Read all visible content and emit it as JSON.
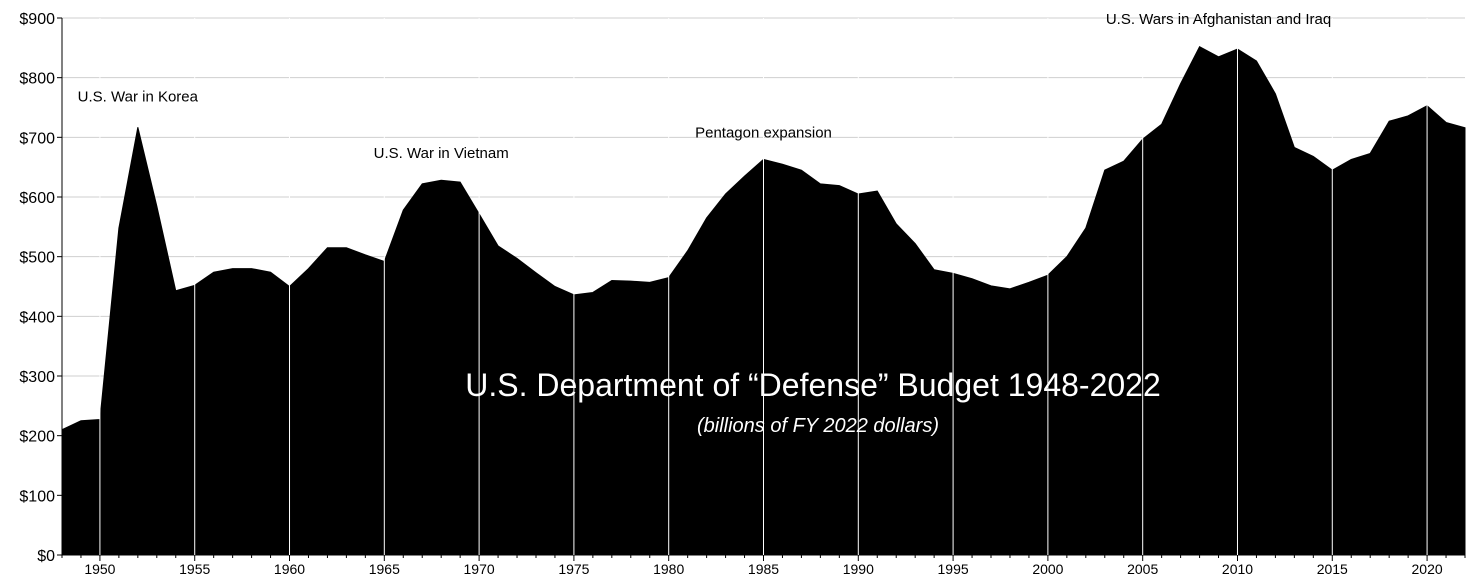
{
  "chart_data": {
    "type": "area",
    "title": "U.S. Department of “Defense” Budget 1948-2022",
    "subtitle": "(billions of FY 2022 dollars)",
    "xlabel": "",
    "ylabel": "",
    "xlim": [
      1948,
      2022
    ],
    "ylim": [
      0,
      900
    ],
    "yticks": [
      0,
      100,
      200,
      300,
      400,
      500,
      600,
      700,
      800,
      900
    ],
    "ytick_labels": [
      "$0",
      "$100",
      "$200",
      "$300",
      "$400",
      "$500",
      "$600",
      "$700",
      "$800",
      "$900"
    ],
    "xticks": [
      1950,
      1955,
      1960,
      1965,
      1970,
      1975,
      1980,
      1985,
      1990,
      1995,
      2000,
      2005,
      2010,
      2015,
      2020
    ],
    "xtick_labels": [
      "1950",
      "1955",
      "1960",
      "1965",
      "1970",
      "1975",
      "1980",
      "1985",
      "1990",
      "1995",
      "2000",
      "2005",
      "2010",
      "2015",
      "2020"
    ],
    "grid": "vertical lines every 5 years",
    "legend": "none",
    "colors": {
      "area": "#000000",
      "gridlines": "#ffffff",
      "background": "#ffffff",
      "title_text": "#ffffff"
    },
    "x": [
      1948,
      1949,
      1950,
      1951,
      1952,
      1953,
      1954,
      1955,
      1956,
      1957,
      1958,
      1959,
      1960,
      1961,
      1962,
      1963,
      1964,
      1965,
      1966,
      1967,
      1968,
      1969,
      1970,
      1971,
      1972,
      1973,
      1974,
      1975,
      1976,
      1977,
      1978,
      1979,
      1980,
      1981,
      1982,
      1983,
      1984,
      1985,
      1986,
      1987,
      1988,
      1989,
      1990,
      1991,
      1992,
      1993,
      1994,
      1995,
      1996,
      1997,
      1998,
      1999,
      2000,
      2001,
      2002,
      2003,
      2004,
      2005,
      2006,
      2007,
      2008,
      2009,
      2010,
      2011,
      2012,
      2013,
      2014,
      2015,
      2016,
      2017,
      2018,
      2019,
      2020,
      2021,
      2022
    ],
    "series": [
      {
        "values": [
          210,
          225,
          227,
          548,
          717,
          585,
          443,
          452,
          474,
          480,
          480,
          474,
          450,
          480,
          515,
          515,
          503,
          492,
          578,
          622,
          628,
          625,
          572,
          518,
          497,
          473,
          450,
          436,
          440,
          460,
          459,
          457,
          465,
          510,
          565,
          605,
          635,
          663,
          655,
          645,
          622,
          619,
          605,
          610,
          555,
          522,
          478,
          472,
          463,
          451,
          446,
          457,
          469,
          500,
          548,
          645,
          660,
          697,
          722,
          790,
          852,
          835,
          848,
          828,
          773,
          683,
          668,
          645,
          663,
          673,
          727,
          736,
          753,
          725,
          716
        ]
      }
    ],
    "annotations": [
      {
        "text": "U.S. War in Korea",
        "x": 1952,
        "y": 760
      },
      {
        "text": "U.S. War in Vietnam",
        "x": 1968,
        "y": 665
      },
      {
        "text": "Pentagon expansion",
        "x": 1985,
        "y": 700
      },
      {
        "text": "U.S. Wars in Afghanistan and Iraq",
        "x": 2009,
        "y": 890
      }
    ]
  }
}
